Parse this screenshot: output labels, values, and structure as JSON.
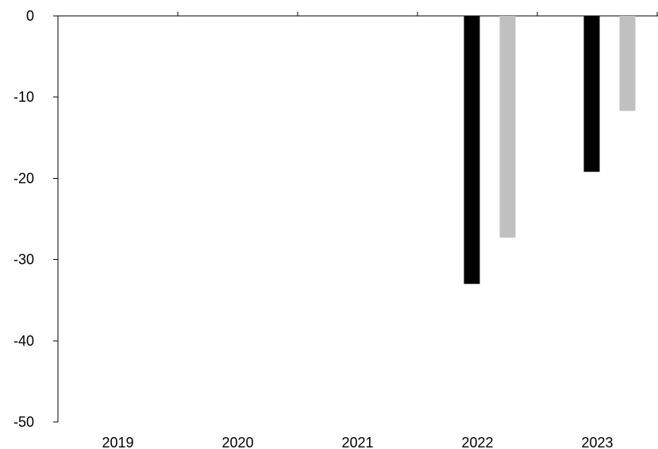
{
  "chart_data": {
    "type": "bar",
    "title": "",
    "xlabel": "",
    "ylabel": "",
    "categories": [
      "2019",
      "2020",
      "2021",
      "2022",
      "2023"
    ],
    "series": [
      {
        "color": "#000000",
        "values": [
          null,
          null,
          null,
          -33.0,
          -19.2
        ]
      },
      {
        "color": "#c0c0c0",
        "values": [
          null,
          null,
          null,
          -27.3,
          -11.7
        ]
      }
    ],
    "ylim": [
      -50,
      0
    ],
    "yticks": [
      0,
      -10,
      -20,
      -30,
      -40,
      -50
    ],
    "ytick_labels": [
      "0",
      "-10",
      "-20",
      "-30",
      "-40",
      "-50"
    ],
    "grid": false,
    "legend": "none"
  }
}
